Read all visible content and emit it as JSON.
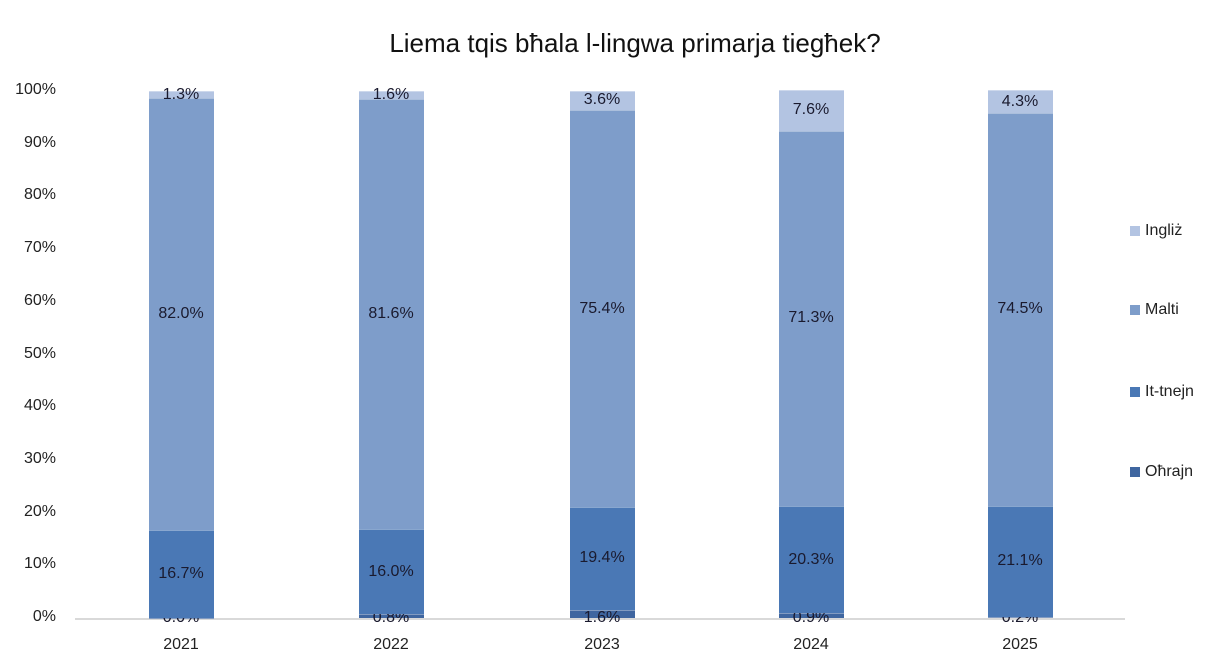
{
  "chart_data": {
    "type": "bar",
    "stacked": true,
    "title": "Liema tqis bħala l-lingwa primarja tiegħek?",
    "xlabel": "",
    "ylabel": "",
    "ylim": [
      0,
      100
    ],
    "y_ticks": [
      "0%",
      "10%",
      "20%",
      "30%",
      "40%",
      "50%",
      "60%",
      "70%",
      "80%",
      "90%",
      "100%"
    ],
    "categories": [
      "2021",
      "2022",
      "2023",
      "2024",
      "2025"
    ],
    "series": [
      {
        "name": "Oħrajn",
        "color": "#3f66a0",
        "values": [
          0.0,
          0.8,
          1.6,
          0.9,
          0.2
        ],
        "labels": [
          "0.0%",
          "0.8%",
          "1.6%",
          "0.9%",
          "0.2%"
        ]
      },
      {
        "name": "It-tnejn",
        "color": "#4a78b5",
        "values": [
          16.7,
          16.0,
          19.4,
          20.3,
          21.1
        ],
        "labels": [
          "16.7%",
          "16.0%",
          "19.4%",
          "20.3%",
          "21.1%"
        ]
      },
      {
        "name": "Malti",
        "color": "#7e9dca",
        "values": [
          82.0,
          81.6,
          75.4,
          71.3,
          74.5
        ],
        "labels": [
          "82.0%",
          "81.6%",
          "75.4%",
          "71.3%",
          "74.5%"
        ]
      },
      {
        "name": "Ingliż",
        "color": "#b3c4e2",
        "values": [
          1.3,
          1.6,
          3.6,
          7.6,
          4.3
        ],
        "labels": [
          "1.3%",
          "1.6%",
          "3.6%",
          "7.6%",
          "4.3%"
        ]
      }
    ],
    "grid": false,
    "legend_position": "right",
    "legend_order": [
      "Ingliż",
      "Malti",
      "It-tnejn",
      "Oħrajn"
    ]
  }
}
